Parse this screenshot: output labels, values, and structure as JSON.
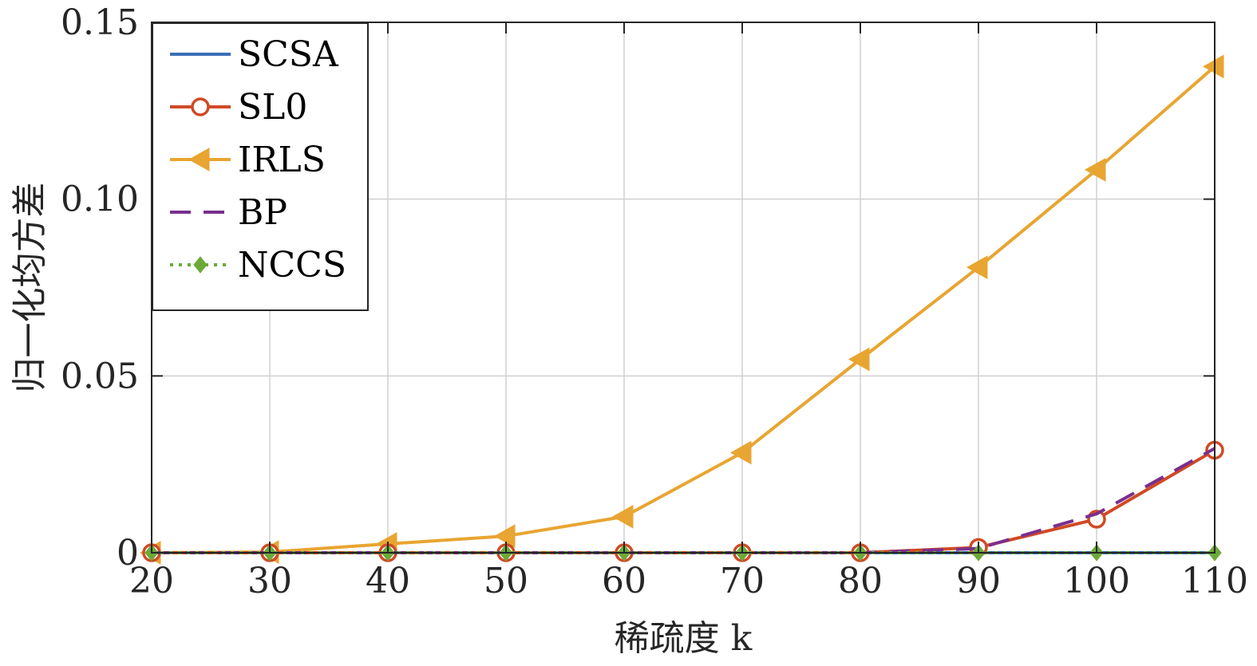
{
  "chart_data": {
    "type": "line",
    "xlabel": "稀疏度 k",
    "ylabel": "归一化均方差",
    "xlim": [
      20,
      110
    ],
    "ylim": [
      0,
      0.15
    ],
    "x": [
      20,
      30,
      40,
      50,
      60,
      70,
      80,
      90,
      100,
      110
    ],
    "x_ticks": [
      "20",
      "30",
      "40",
      "50",
      "60",
      "70",
      "80",
      "90",
      "100",
      "110"
    ],
    "y_ticks": [
      {
        "value": 0,
        "label": "0"
      },
      {
        "value": 0.05,
        "label": "0.05"
      },
      {
        "value": 0.1,
        "label": "0.10"
      },
      {
        "value": 0.15,
        "label": "0.15"
      }
    ],
    "grid": true,
    "legend_position": "top-left",
    "series": [
      {
        "name": "SCSA",
        "color": "#3B6FB6",
        "line": "solid",
        "marker": "none",
        "values": [
          0,
          0,
          0,
          0,
          0,
          0,
          0,
          0,
          0,
          0
        ]
      },
      {
        "name": "SL0",
        "color": "#D04A25",
        "line": "solid",
        "marker": "circle",
        "values": [
          0,
          0,
          0,
          0,
          0,
          0,
          0,
          0.0015,
          0.0095,
          0.029
        ]
      },
      {
        "name": "IRLS",
        "color": "#E8A531",
        "line": "solid",
        "marker": "left-triangle",
        "values": [
          0,
          0.0002,
          0.0025,
          0.0047,
          0.0102,
          0.0283,
          0.0547,
          0.0807,
          0.1083,
          0.1375
        ]
      },
      {
        "name": "BP",
        "color": "#7A2F8E",
        "line": "dashed",
        "marker": "none",
        "values": [
          0,
          0,
          0,
          0,
          0,
          0,
          0,
          0.0012,
          0.011,
          0.0295
        ]
      },
      {
        "name": "NCCS",
        "color": "#6BAA39",
        "line": "dotted",
        "marker": "diamond",
        "values": [
          0,
          0,
          0,
          0,
          0,
          0,
          0,
          0,
          0,
          0
        ]
      }
    ]
  }
}
